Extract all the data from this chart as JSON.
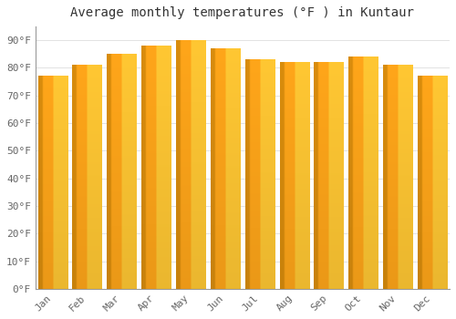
{
  "title": "Average monthly temperatures (°F ) in Kuntaur",
  "months": [
    "Jan",
    "Feb",
    "Mar",
    "Apr",
    "May",
    "Jun",
    "Jul",
    "Aug",
    "Sep",
    "Oct",
    "Nov",
    "Dec"
  ],
  "values": [
    77,
    81,
    85,
    88,
    90,
    87,
    83,
    82,
    82,
    84,
    81,
    77
  ],
  "bar_color_main": "#FFA500",
  "bar_color_light": "#FFD060",
  "bar_color_dark": "#E08000",
  "background_color": "#FFFFFF",
  "plot_bg_color": "#FFFFFF",
  "ylim": [
    0,
    95
  ],
  "yticks": [
    0,
    10,
    20,
    30,
    40,
    50,
    60,
    70,
    80,
    90
  ],
  "ytick_labels": [
    "0°F",
    "10°F",
    "20°F",
    "30°F",
    "40°F",
    "50°F",
    "60°F",
    "70°F",
    "80°F",
    "90°F"
  ],
  "title_fontsize": 10,
  "tick_fontsize": 8,
  "grid_color": "#DDDDDD",
  "font_family": "monospace"
}
